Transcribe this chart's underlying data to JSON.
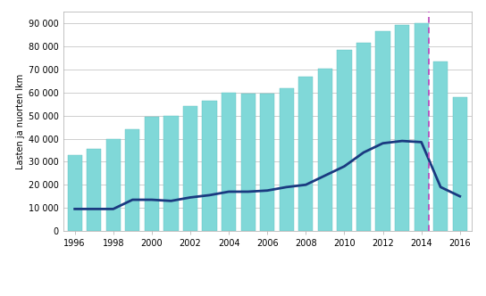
{
  "years": [
    1996,
    1997,
    1998,
    1999,
    2000,
    2001,
    2002,
    2003,
    2004,
    2005,
    2006,
    2007,
    2008,
    2009,
    2010,
    2011,
    2012,
    2013,
    2014,
    2015,
    2016
  ],
  "bar_values": [
    33000,
    35500,
    40000,
    44000,
    49500,
    50000,
    54000,
    56500,
    60000,
    59500,
    59500,
    62000,
    67000,
    70500,
    78500,
    81500,
    86500,
    89500,
    90000,
    73500,
    57800
  ],
  "line_values": [
    9500,
    9500,
    9500,
    13500,
    13500,
    13000,
    14500,
    15500,
    17000,
    17000,
    17500,
    19000,
    20000,
    24000,
    28000,
    34000,
    38000,
    39000,
    38500,
    19000,
    15000
  ],
  "bar_color": "#80d8d8",
  "bar_edge_color": "#60c0c0",
  "line_color": "#1a3a80",
  "vline_x": 2014,
  "vline_color": "#bb44bb",
  "ylabel": "Lasten ja nuorten lkm",
  "yticks": [
    0,
    10000,
    20000,
    30000,
    40000,
    50000,
    60000,
    70000,
    80000,
    90000
  ],
  "ytick_labels": [
    "0",
    "10 000",
    "20 000",
    "30 000",
    "40 000",
    "50 000",
    "60 000",
    "70 000",
    "80 000",
    "90 000"
  ],
  "xtick_labels": [
    "1996",
    "1998",
    "2000",
    "2002",
    "2004",
    "2006",
    "2008",
    "2010",
    "2012",
    "2014",
    "2016"
  ],
  "ylim": [
    0,
    95000
  ],
  "bar_width": 0.75,
  "background_color": "#ffffff",
  "grid_color": "#bbbbbb",
  "label_fontsize": 7,
  "tick_fontsize": 7
}
